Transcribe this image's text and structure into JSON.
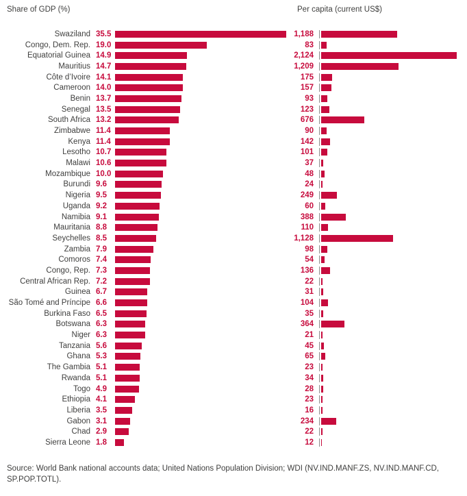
{
  "header": {
    "left_title": "Share of GDP (%)",
    "right_title": "Per capita (current US$)"
  },
  "source": {
    "text": "Source: World Bank national accounts data; United Nations Population Division; WDI (NV.IND.MANF.ZS, NV.IND.MANF.CD, SP.POP.TOTL)."
  },
  "colors": {
    "bar": "#c70b3d",
    "value_text": "#c70b3d",
    "label_text": "#3f3f3e",
    "tick_line": "#8c8c8c"
  },
  "chart_data": {
    "type": "bar",
    "orientation": "horizontal",
    "grid": false,
    "legend": "none",
    "panels": [
      {
        "title": "Share of GDP (%)",
        "max": 35.5,
        "value_format": "one-decimal"
      },
      {
        "title": "Per capita (current US$)",
        "max": 2124,
        "value_format": "thousands-comma"
      }
    ],
    "categories": [
      "Swaziland",
      "Congo, Dem. Rep.",
      "Equatorial Guinea",
      "Mauritius",
      "Côte d’Ivoire",
      "Cameroon",
      "Benin",
      "Senegal",
      "South Africa",
      "Zimbabwe",
      "Kenya",
      "Lesotho",
      "Malawi",
      "Mozambique",
      "Burundi",
      "Nigeria",
      "Uganda",
      "Namibia",
      "Mauritania",
      "Seychelles",
      "Zambia",
      "Comoros",
      "Congo, Rep.",
      "Central African Rep.",
      "Guinea",
      "São Tomé and Príncipe",
      "Burkina Faso",
      "Botswana",
      "Niger",
      "Tanzania",
      "Ghana",
      "The Gambia",
      "Rwanda",
      "Togo",
      "Ethiopia",
      "Liberia",
      "Gabon",
      "Chad",
      "Sierra Leone"
    ],
    "series": [
      {
        "name": "Share of GDP (%)",
        "values": [
          35.5,
          19.0,
          14.9,
          14.7,
          14.1,
          14.0,
          13.7,
          13.5,
          13.2,
          11.4,
          11.4,
          10.7,
          10.6,
          10.0,
          9.6,
          9.5,
          9.2,
          9.1,
          8.8,
          8.5,
          7.9,
          7.4,
          7.3,
          7.2,
          6.7,
          6.6,
          6.5,
          6.3,
          6.3,
          5.6,
          5.3,
          5.1,
          5.1,
          4.9,
          4.1,
          3.5,
          3.1,
          2.9,
          1.8
        ]
      },
      {
        "name": "Per capita (current US$)",
        "values": [
          1188,
          83,
          2124,
          1209,
          175,
          157,
          93,
          123,
          676,
          90,
          142,
          101,
          37,
          48,
          24,
          249,
          60,
          388,
          110,
          1128,
          98,
          54,
          136,
          22,
          31,
          104,
          35,
          364,
          21,
          45,
          65,
          23,
          34,
          28,
          23,
          16,
          234,
          22,
          12
        ]
      }
    ]
  }
}
